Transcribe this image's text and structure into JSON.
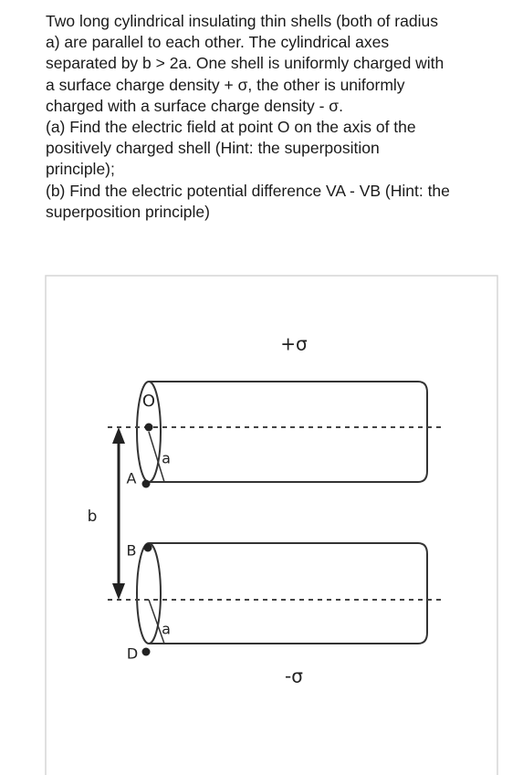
{
  "problem": {
    "lines": [
      "Two long cylindrical insulating thin shells (both of radius",
      "a) are parallel to each other. The cylindrical axes",
      "separated by b > 2a. One shell is uniformly charged with",
      "a surface charge density + σ, the other is uniformly",
      "charged with a surface charge density - σ.",
      "(a) Find the electric field at point O on the axis of the",
      "positively charged shell (Hint: the superposition",
      "principle);",
      "(b) Find the electric potential difference VA - VB (Hint: the",
      "superposition principle)"
    ]
  },
  "figure": {
    "labels": {
      "top_charge": "+σ",
      "bottom_charge": "-σ",
      "point_o": "O",
      "radius_top": "a",
      "point_a": "A",
      "point_b": "B",
      "separation": "b",
      "point_d": "D",
      "radius_bottom": "a"
    }
  }
}
